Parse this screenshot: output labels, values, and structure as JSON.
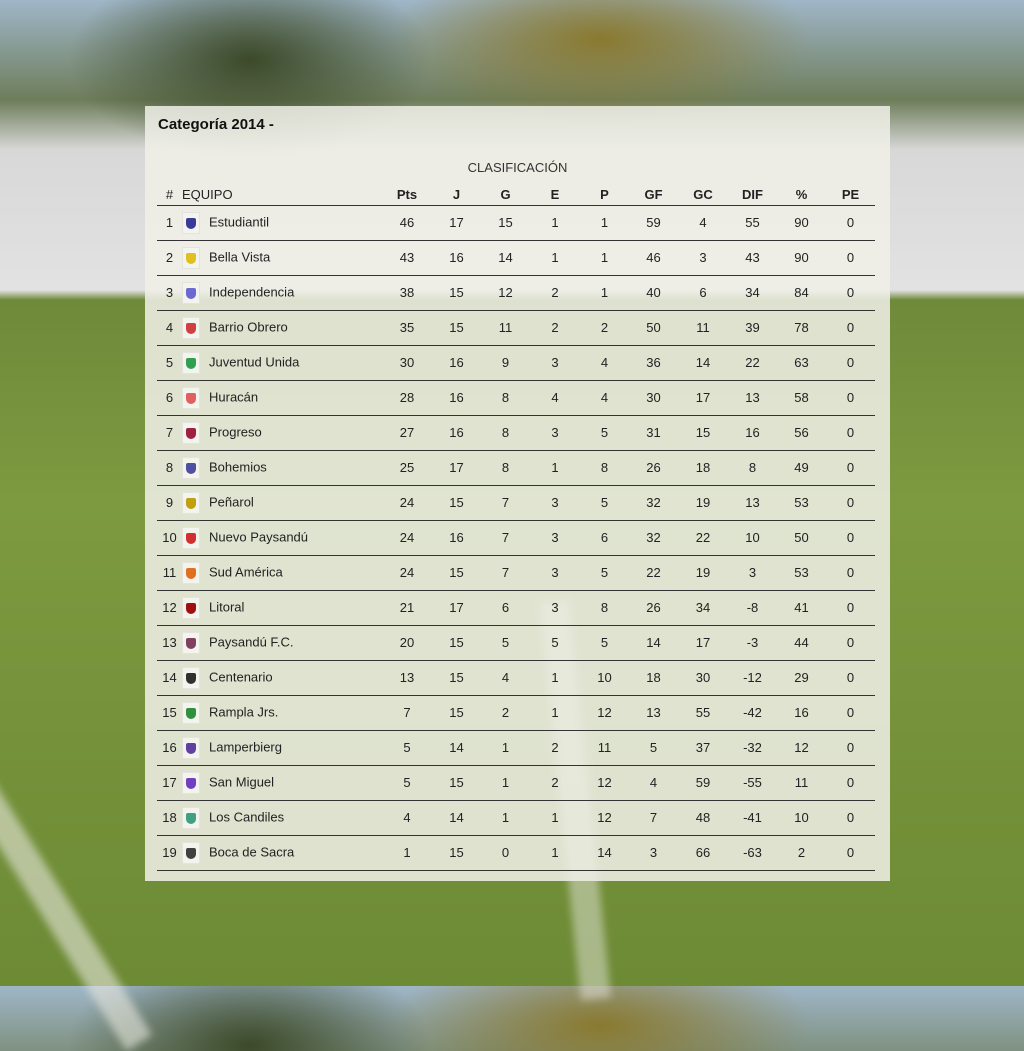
{
  "title": "Categoría 2014 -",
  "caption": "CLASIFICACIÓN",
  "columns": [
    "#",
    "EQUIPO",
    "Pts",
    "J",
    "G",
    "E",
    "P",
    "GF",
    "GC",
    "DIF",
    "%",
    "PE"
  ],
  "rows": [
    {
      "pos": "1",
      "team": "Estudiantil",
      "color": "#3a3a9a",
      "stats": [
        "46",
        "17",
        "15",
        "1",
        "1",
        "59",
        "4",
        "55",
        "90",
        "0"
      ]
    },
    {
      "pos": "2",
      "team": "Bella Vista",
      "color": "#e0c020",
      "stats": [
        "43",
        "16",
        "14",
        "1",
        "1",
        "46",
        "3",
        "43",
        "90",
        "0"
      ]
    },
    {
      "pos": "3",
      "team": "Independencia",
      "color": "#6a6ad0",
      "stats": [
        "38",
        "15",
        "12",
        "2",
        "1",
        "40",
        "6",
        "34",
        "84",
        "0"
      ]
    },
    {
      "pos": "4",
      "team": "Barrio Obrero",
      "color": "#d04040",
      "stats": [
        "35",
        "15",
        "11",
        "2",
        "2",
        "50",
        "11",
        "39",
        "78",
        "0"
      ]
    },
    {
      "pos": "5",
      "team": "Juventud Unida",
      "color": "#30a050",
      "stats": [
        "30",
        "16",
        "9",
        "3",
        "4",
        "36",
        "14",
        "22",
        "63",
        "0"
      ]
    },
    {
      "pos": "6",
      "team": "Huracán",
      "color": "#e06060",
      "stats": [
        "28",
        "16",
        "8",
        "4",
        "4",
        "30",
        "17",
        "13",
        "58",
        "0"
      ]
    },
    {
      "pos": "7",
      "team": "Progreso",
      "color": "#a02040",
      "stats": [
        "27",
        "16",
        "8",
        "3",
        "5",
        "31",
        "15",
        "16",
        "56",
        "0"
      ]
    },
    {
      "pos": "8",
      "team": "Bohemios",
      "color": "#5050a0",
      "stats": [
        "25",
        "17",
        "8",
        "1",
        "8",
        "26",
        "18",
        "8",
        "49",
        "0"
      ]
    },
    {
      "pos": "9",
      "team": "Peñarol",
      "color": "#c0a010",
      "stats": [
        "24",
        "15",
        "7",
        "3",
        "5",
        "32",
        "19",
        "13",
        "53",
        "0"
      ]
    },
    {
      "pos": "10",
      "team": "Nuevo Paysandú",
      "color": "#d03030",
      "stats": [
        "24",
        "16",
        "7",
        "3",
        "6",
        "32",
        "22",
        "10",
        "50",
        "0"
      ]
    },
    {
      "pos": "11",
      "team": "Sud América",
      "color": "#e07020",
      "stats": [
        "24",
        "15",
        "7",
        "3",
        "5",
        "22",
        "19",
        "3",
        "53",
        "0"
      ]
    },
    {
      "pos": "12",
      "team": "Litoral",
      "color": "#a01010",
      "stats": [
        "21",
        "17",
        "6",
        "3",
        "8",
        "26",
        "34",
        "-8",
        "41",
        "0"
      ]
    },
    {
      "pos": "13",
      "team": "Paysandú F.C.",
      "color": "#804060",
      "stats": [
        "20",
        "15",
        "5",
        "5",
        "5",
        "14",
        "17",
        "-3",
        "44",
        "0"
      ]
    },
    {
      "pos": "14",
      "team": "Centenario",
      "color": "#303030",
      "stats": [
        "13",
        "15",
        "4",
        "1",
        "10",
        "18",
        "30",
        "-12",
        "29",
        "0"
      ]
    },
    {
      "pos": "15",
      "team": "Rampla Jrs.",
      "color": "#309040",
      "stats": [
        "7",
        "15",
        "2",
        "1",
        "12",
        "13",
        "55",
        "-42",
        "16",
        "0"
      ]
    },
    {
      "pos": "16",
      "team": "Lamperbierg",
      "color": "#6040a0",
      "stats": [
        "5",
        "14",
        "1",
        "2",
        "11",
        "5",
        "37",
        "-32",
        "12",
        "0"
      ]
    },
    {
      "pos": "17",
      "team": "San Miguel",
      "color": "#7040c0",
      "stats": [
        "5",
        "15",
        "1",
        "2",
        "12",
        "4",
        "59",
        "-55",
        "11",
        "0"
      ]
    },
    {
      "pos": "18",
      "team": "Los Candiles",
      "color": "#40a080",
      "stats": [
        "4",
        "14",
        "1",
        "1",
        "12",
        "7",
        "48",
        "-41",
        "10",
        "0"
      ]
    },
    {
      "pos": "19",
      "team": "Boca de Sacra",
      "color": "#404040",
      "stats": [
        "1",
        "15",
        "0",
        "1",
        "14",
        "3",
        "66",
        "-63",
        "2",
        "0"
      ]
    }
  ]
}
